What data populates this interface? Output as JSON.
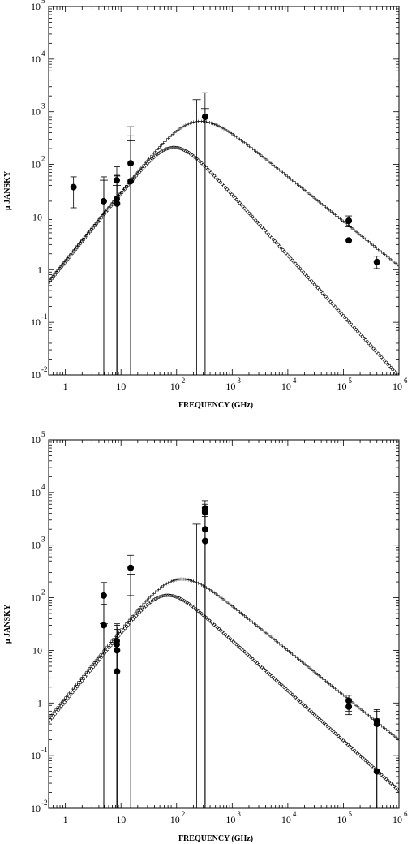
{
  "chart_data": [
    {
      "type": "scatter",
      "xlabel": "FREQUENCY (GHz)",
      "ylabel": "μ JANSKY",
      "x_scale": "log",
      "y_scale": "log",
      "xlim": [
        0.5,
        1000000
      ],
      "ylim": [
        0.01,
        100000
      ],
      "grid": false,
      "x_tick_labels": [
        {
          "v": 1,
          "base": "1",
          "sup": ""
        },
        {
          "v": 10,
          "base": "10",
          "sup": ""
        },
        {
          "v": 100,
          "base": "10",
          "sup": "2"
        },
        {
          "v": 1000,
          "base": "10",
          "sup": "3"
        },
        {
          "v": 10000,
          "base": "10",
          "sup": "4"
        },
        {
          "v": 100000,
          "base": "10",
          "sup": "5"
        },
        {
          "v": 1000000,
          "base": "10",
          "sup": "6"
        }
      ],
      "y_tick_labels": [
        {
          "v": 0.01,
          "base": "10",
          "sup": "-2"
        },
        {
          "v": 0.1,
          "base": "10",
          "sup": "-1"
        },
        {
          "v": 1,
          "base": "1",
          "sup": ""
        },
        {
          "v": 10,
          "base": "10",
          "sup": ""
        },
        {
          "v": 100,
          "base": "10",
          "sup": "2"
        },
        {
          "v": 1000,
          "base": "10",
          "sup": "3"
        },
        {
          "v": 10000,
          "base": "10",
          "sup": "4"
        },
        {
          "v": 100000,
          "base": "10",
          "sup": "5"
        }
      ],
      "series": [
        {
          "marker": "circle",
          "peak_freq": 85,
          "peak_flux": 210,
          "low_slope": 1.3,
          "high_slope": 1.15,
          "smooth": 0.45
        },
        {
          "marker": "plus",
          "peak_freq": 210,
          "peak_flux": 640,
          "low_slope": 1.3,
          "high_slope": 0.85,
          "smooth": 0.6
        }
      ],
      "points": [
        {
          "x": 1.4,
          "y": 37,
          "err_lo": 15,
          "err_hi": 58
        },
        {
          "x": 4.9,
          "y": 20,
          "err_lo": 0.01,
          "err_hi": 58
        },
        {
          "x": 8.4,
          "y": 50,
          "err_lo": 0.01,
          "err_hi": 90
        },
        {
          "x": 8.4,
          "y": 22,
          "err_lo": 0.01,
          "err_hi": 62
        },
        {
          "x": 8.5,
          "y": 18,
          "err_lo": 0.01,
          "err_hi": 60
        },
        {
          "x": 14.9,
          "y": 105,
          "err_lo": 0.01,
          "err_hi": 520
        },
        {
          "x": 14.9,
          "y": 48,
          "err_lo": 0.01,
          "err_hi": 350
        },
        {
          "x": 325,
          "y": 800,
          "err_lo": 0.01,
          "err_hi": 2300
        },
        {
          "x": 125000,
          "y": 8.5,
          "err_lo": 6.5,
          "err_hi": 10.5
        },
        {
          "x": 125000,
          "y": 3.6
        },
        {
          "x": 400000,
          "y": 1.4,
          "err_lo": 1.05,
          "err_hi": 1.8
        }
      ],
      "upper_limits": [
        {
          "x": 4.9,
          "y": 50
        },
        {
          "x": 8.4,
          "y": 40
        },
        {
          "x": 14.9,
          "y": 280
        },
        {
          "x": 230,
          "y": 1700
        },
        {
          "x": 325,
          "y": 1150
        }
      ]
    },
    {
      "type": "scatter",
      "xlabel": "FREQUENCY (GHz)",
      "ylabel": "μ JANSKY",
      "x_scale": "log",
      "y_scale": "log",
      "xlim": [
        0.5,
        1000000
      ],
      "ylim": [
        0.01,
        100000
      ],
      "grid": false,
      "x_tick_labels": [
        {
          "v": 1,
          "base": "1",
          "sup": ""
        },
        {
          "v": 10,
          "base": "10",
          "sup": ""
        },
        {
          "v": 100,
          "base": "10",
          "sup": "2"
        },
        {
          "v": 1000,
          "base": "10",
          "sup": "3"
        },
        {
          "v": 10000,
          "base": "10",
          "sup": "4"
        },
        {
          "v": 100000,
          "base": "10",
          "sup": "5"
        },
        {
          "v": 1000000,
          "base": "10",
          "sup": "6"
        }
      ],
      "y_tick_labels": [
        {
          "v": 0.01,
          "base": "10",
          "sup": "-2"
        },
        {
          "v": 0.1,
          "base": "10",
          "sup": "-1"
        },
        {
          "v": 1,
          "base": "1",
          "sup": ""
        },
        {
          "v": 10,
          "base": "10",
          "sup": ""
        },
        {
          "v": 100,
          "base": "10",
          "sup": "2"
        },
        {
          "v": 1000,
          "base": "10",
          "sup": "3"
        },
        {
          "v": 10000,
          "base": "10",
          "sup": "4"
        },
        {
          "v": 100000,
          "base": "10",
          "sup": "5"
        }
      ],
      "series": [
        {
          "marker": "circle",
          "peak_freq": 60,
          "peak_flux": 110,
          "low_slope": 1.3,
          "high_slope": 0.95,
          "smooth": 0.45
        },
        {
          "marker": "plus",
          "peak_freq": 100,
          "peak_flux": 220,
          "low_slope": 1.3,
          "high_slope": 0.85,
          "smooth": 0.55
        }
      ],
      "points": [
        {
          "x": 4.9,
          "y": 110,
          "err_lo": 0.01,
          "err_hi": 195
        },
        {
          "x": 4.9,
          "y": 30,
          "err_lo": 0.01,
          "err_hi": 75
        },
        {
          "x": 8.4,
          "y": 15,
          "err_lo": 0.01,
          "err_hi": 32
        },
        {
          "x": 8.4,
          "y": 13,
          "err_lo": 0.01,
          "err_hi": 30
        },
        {
          "x": 8.5,
          "y": 10,
          "err_lo": 0.01,
          "err_hi": 28
        },
        {
          "x": 8.5,
          "y": 4,
          "err_lo": 0.01,
          "err_hi": 25
        },
        {
          "x": 14.9,
          "y": 370,
          "err_lo": 110,
          "err_hi": 640
        },
        {
          "x": 325,
          "y": 5000,
          "err_lo": 0.01,
          "err_hi": 7000
        },
        {
          "x": 325,
          "y": 4200,
          "err_lo": 0.01,
          "err_hi": 6000
        },
        {
          "x": 325,
          "y": 2000,
          "err_lo": 0.01,
          "err_hi": 4500
        },
        {
          "x": 325,
          "y": 1200,
          "err_lo": 0.01,
          "err_hi": 3500
        },
        {
          "x": 125000,
          "y": 1.1,
          "err_lo": 0.7,
          "err_hi": 1.4
        },
        {
          "x": 125000,
          "y": 0.85,
          "err_lo": 0.6,
          "err_hi": 1.2
        },
        {
          "x": 400000,
          "y": 0.45,
          "err_lo": 0.01,
          "err_hi": 0.75
        },
        {
          "x": 400000,
          "y": 0.4,
          "err_lo": 0.01,
          "err_hi": 0.7
        },
        {
          "x": 400000,
          "y": 0.05,
          "err_lo": 0.01,
          "err_hi": 0.5
        }
      ],
      "upper_limits": [
        {
          "x": 4.9,
          "y": 32
        },
        {
          "x": 14.9,
          "y": 280
        },
        {
          "x": 230,
          "y": 2500
        }
      ]
    }
  ]
}
